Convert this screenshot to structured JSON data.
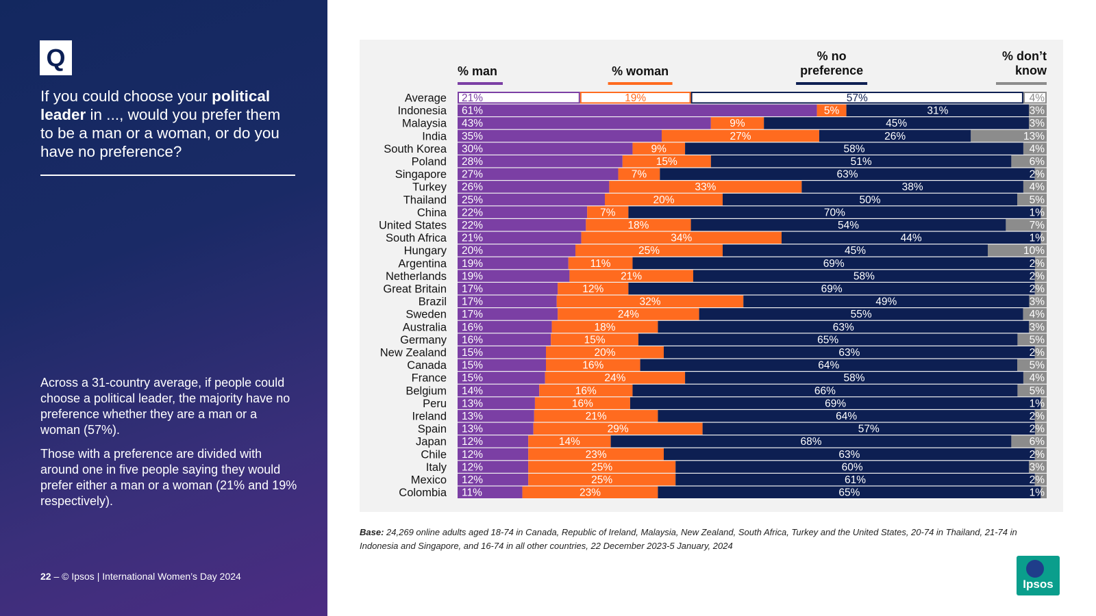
{
  "sidebar": {
    "q_badge": "Q",
    "question_pre": "If you could choose your ",
    "question_bold1": "political leader",
    "question_post": " in ..., would you prefer them to be a man or a woman, or do you have no preference?",
    "summary_p1": "Across a 31-country average, if people could choose a political leader, the majority have no preference whether they are a man or a woman (57%).",
    "summary_p2": "Those with a preference are divided with around one in five people saying they would prefer either a man or a woman (21% and 19% respectively).",
    "footer_page": "22",
    "footer_text": " – © Ipsos | International Women’s Day 2024"
  },
  "base_note": {
    "label": "Base:",
    "text": " 24,269 online adults aged 18-74 in Canada, Republic of Ireland, Malaysia, New Zealand, South Africa, Turkey and the United States, 20-74 in Thailand, 21-74 in Indonesia and Singapore, and 16-74 in all other countries, 22 December 2023-5 January, 2024"
  },
  "logo": {
    "text": "Ipsos"
  },
  "colors": {
    "man": "#7b3fa4",
    "woman": "#ff6b1f",
    "no_pref": "#0d1f52",
    "dont_know": "#8c8c8c"
  },
  "chart_data": {
    "type": "bar",
    "orientation": "horizontal",
    "stacked": true,
    "series": [
      {
        "name": "% man"
      },
      {
        "name": "% woman"
      },
      {
        "name": "% no preference"
      },
      {
        "name": "% don’t know"
      }
    ],
    "rows": [
      {
        "country": "Average",
        "values": [
          21,
          19,
          57,
          4
        ]
      },
      {
        "country": "Indonesia",
        "values": [
          61,
          5,
          31,
          3
        ]
      },
      {
        "country": "Malaysia",
        "values": [
          43,
          9,
          45,
          3
        ]
      },
      {
        "country": "India",
        "values": [
          35,
          27,
          26,
          13
        ]
      },
      {
        "country": "South Korea",
        "values": [
          30,
          9,
          58,
          4
        ]
      },
      {
        "country": "Poland",
        "values": [
          28,
          15,
          51,
          6
        ]
      },
      {
        "country": "Singapore",
        "values": [
          27,
          7,
          63,
          2
        ]
      },
      {
        "country": "Turkey",
        "values": [
          26,
          33,
          38,
          4
        ]
      },
      {
        "country": "Thailand",
        "values": [
          25,
          20,
          50,
          5
        ]
      },
      {
        "country": "China",
        "values": [
          22,
          7,
          70,
          1
        ]
      },
      {
        "country": "United States",
        "values": [
          22,
          18,
          54,
          7
        ]
      },
      {
        "country": "South Africa",
        "values": [
          21,
          34,
          44,
          1
        ]
      },
      {
        "country": "Hungary",
        "values": [
          20,
          25,
          45,
          10
        ]
      },
      {
        "country": "Argentina",
        "values": [
          19,
          11,
          69,
          2
        ]
      },
      {
        "country": "Netherlands",
        "values": [
          19,
          21,
          58,
          2
        ]
      },
      {
        "country": "Great Britain",
        "values": [
          17,
          12,
          69,
          2
        ]
      },
      {
        "country": "Brazil",
        "values": [
          17,
          32,
          49,
          3
        ]
      },
      {
        "country": "Sweden",
        "values": [
          17,
          24,
          55,
          4
        ]
      },
      {
        "country": "Australia",
        "values": [
          16,
          18,
          63,
          3
        ]
      },
      {
        "country": "Germany",
        "values": [
          16,
          15,
          65,
          5
        ]
      },
      {
        "country": "New Zealand",
        "values": [
          15,
          20,
          63,
          2
        ]
      },
      {
        "country": "Canada",
        "values": [
          15,
          16,
          64,
          5
        ]
      },
      {
        "country": "France",
        "values": [
          15,
          24,
          58,
          4
        ]
      },
      {
        "country": "Belgium",
        "values": [
          14,
          16,
          66,
          5
        ]
      },
      {
        "country": "Peru",
        "values": [
          13,
          16,
          69,
          1
        ]
      },
      {
        "country": "Ireland",
        "values": [
          13,
          21,
          64,
          2
        ]
      },
      {
        "country": "Spain",
        "values": [
          13,
          29,
          57,
          2
        ]
      },
      {
        "country": "Japan",
        "values": [
          12,
          14,
          68,
          6
        ]
      },
      {
        "country": "Chile",
        "values": [
          12,
          23,
          63,
          2
        ]
      },
      {
        "country": "Italy",
        "values": [
          12,
          25,
          60,
          3
        ]
      },
      {
        "country": "Mexico",
        "values": [
          12,
          25,
          61,
          2
        ]
      },
      {
        "country": "Colombia",
        "values": [
          11,
          23,
          65,
          1
        ]
      }
    ],
    "value_suffix": "%",
    "xlim": [
      0,
      100
    ],
    "legend_position": "top",
    "grid": false
  }
}
